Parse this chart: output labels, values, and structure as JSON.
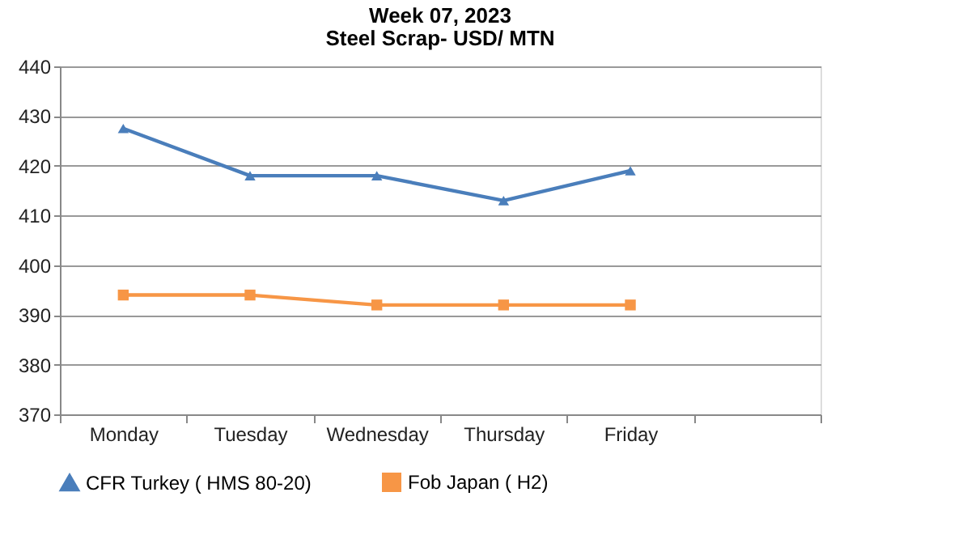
{
  "chart_data": {
    "type": "line",
    "title": "Week 07, 2023",
    "subtitle": "Steel Scrap- USD/ MTN",
    "categories": [
      "Monday",
      "Tuesday",
      "Wednesday",
      "Thursday",
      "Friday",
      null
    ],
    "series": [
      {
        "name": "CFR Turkey ( HMS 80-20)",
        "color": "#4a7ebb",
        "marker": "triangle",
        "values": [
          427.5,
          418,
          418,
          413,
          419,
          null
        ]
      },
      {
        "name": "Fob Japan ( H2)",
        "color": "#f79646",
        "marker": "square",
        "values": [
          394,
          394,
          392,
          392,
          392,
          null
        ]
      }
    ],
    "ylim": [
      370,
      440
    ],
    "yticks": [
      370,
      380,
      390,
      400,
      410,
      420,
      430,
      440
    ],
    "grid": "y",
    "legend": "bottom",
    "line_style": "solid"
  }
}
